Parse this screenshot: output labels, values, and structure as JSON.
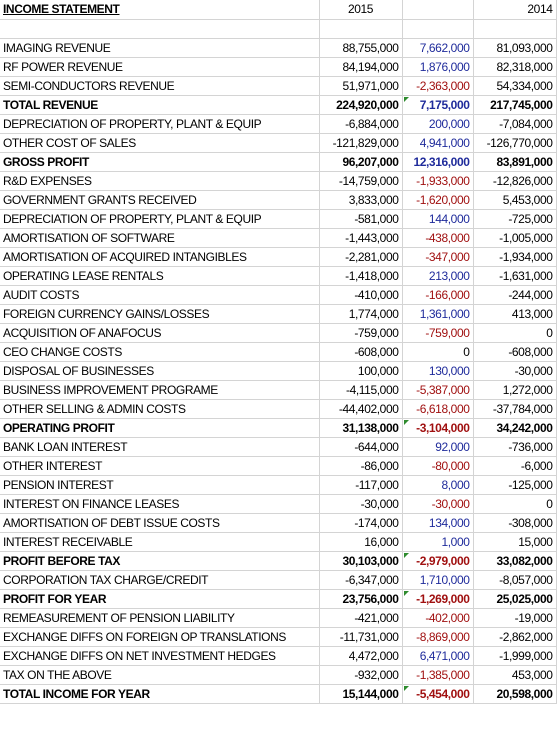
{
  "header": {
    "title": "INCOME STATEMENT",
    "col_2015": "2015",
    "col_diff": "",
    "col_2014": "2014"
  },
  "colors": {
    "positive_diff": "#1f2b9b",
    "negative_diff": "#a01010",
    "comment_flag": "#2e8b2e"
  },
  "rows": [
    {
      "label": "",
      "v2015": "",
      "diff": "",
      "v2014": "",
      "bold": false,
      "sign": "",
      "flag": false
    },
    {
      "label": "IMAGING REVENUE",
      "v2015": "88,755,000",
      "diff": "7,662,000",
      "v2014": "81,093,000",
      "bold": false,
      "sign": "pos",
      "flag": false
    },
    {
      "label": "RF POWER REVENUE",
      "v2015": "84,194,000",
      "diff": "1,876,000",
      "v2014": "82,318,000",
      "bold": false,
      "sign": "pos",
      "flag": false
    },
    {
      "label": "SEMI-CONDUCTORS REVENUE",
      "v2015": "51,971,000",
      "diff": "-2,363,000",
      "v2014": "54,334,000",
      "bold": false,
      "sign": "neg",
      "flag": false
    },
    {
      "label": "TOTAL REVENUE",
      "v2015": "224,920,000",
      "diff": "7,175,000",
      "v2014": "217,745,000",
      "bold": true,
      "sign": "pos",
      "flag": true
    },
    {
      "label": "DEPRECIATION OF PROPERTY, PLANT & EQUIP",
      "v2015": "-6,884,000",
      "diff": "200,000",
      "v2014": "-7,084,000",
      "bold": false,
      "sign": "pos",
      "flag": false
    },
    {
      "label": "OTHER COST OF SALES",
      "v2015": "-121,829,000",
      "diff": "4,941,000",
      "v2014": "-126,770,000",
      "bold": false,
      "sign": "pos",
      "flag": false
    },
    {
      "label": "GROSS PROFIT",
      "v2015": "96,207,000",
      "diff": "12,316,000",
      "v2014": "83,891,000",
      "bold": true,
      "sign": "pos",
      "flag": false
    },
    {
      "label": "R&D EXPENSES",
      "v2015": "-14,759,000",
      "diff": "-1,933,000",
      "v2014": "-12,826,000",
      "bold": false,
      "sign": "neg",
      "flag": false
    },
    {
      "label": "GOVERNMENT GRANTS RECEIVED",
      "v2015": "3,833,000",
      "diff": "-1,620,000",
      "v2014": "5,453,000",
      "bold": false,
      "sign": "neg",
      "flag": false
    },
    {
      "label": "DEPRECIATION OF PROPERTY, PLANT & EQUIP",
      "v2015": "-581,000",
      "diff": "144,000",
      "v2014": "-725,000",
      "bold": false,
      "sign": "pos",
      "flag": false
    },
    {
      "label": "AMORTISATION OF SOFTWARE",
      "v2015": "-1,443,000",
      "diff": "-438,000",
      "v2014": "-1,005,000",
      "bold": false,
      "sign": "neg",
      "flag": false
    },
    {
      "label": "AMORTISATION OF ACQUIRED INTANGIBLES",
      "v2015": "-2,281,000",
      "diff": "-347,000",
      "v2014": "-1,934,000",
      "bold": false,
      "sign": "neg",
      "flag": false
    },
    {
      "label": "OPERATING LEASE RENTALS",
      "v2015": "-1,418,000",
      "diff": "213,000",
      "v2014": "-1,631,000",
      "bold": false,
      "sign": "pos",
      "flag": false
    },
    {
      "label": "AUDIT COSTS",
      "v2015": "-410,000",
      "diff": "-166,000",
      "v2014": "-244,000",
      "bold": false,
      "sign": "neg",
      "flag": false
    },
    {
      "label": "FOREIGN CURRENCY GAINS/LOSSES",
      "v2015": "1,774,000",
      "diff": "1,361,000",
      "v2014": "413,000",
      "bold": false,
      "sign": "pos",
      "flag": false
    },
    {
      "label": "ACQUISITION OF ANAFOCUS",
      "v2015": "-759,000",
      "diff": "-759,000",
      "v2014": "0",
      "bold": false,
      "sign": "neg",
      "flag": false
    },
    {
      "label": "CEO CHANGE COSTS",
      "v2015": "-608,000",
      "diff": "0",
      "v2014": "-608,000",
      "bold": false,
      "sign": "zero",
      "flag": false
    },
    {
      "label": "DISPOSAL OF BUSINESSES",
      "v2015": "100,000",
      "diff": "130,000",
      "v2014": "-30,000",
      "bold": false,
      "sign": "pos",
      "flag": false
    },
    {
      "label": "BUSINESS IMPROVEMENT PROGRAME",
      "v2015": "-4,115,000",
      "diff": "-5,387,000",
      "v2014": "1,272,000",
      "bold": false,
      "sign": "neg",
      "flag": false
    },
    {
      "label": "OTHER SELLING & ADMIN COSTS",
      "v2015": "-44,402,000",
      "diff": "-6,618,000",
      "v2014": "-37,784,000",
      "bold": false,
      "sign": "neg",
      "flag": false
    },
    {
      "label": "OPERATING PROFIT",
      "v2015": "31,138,000",
      "diff": "-3,104,000",
      "v2014": "34,242,000",
      "bold": true,
      "sign": "neg",
      "flag": true
    },
    {
      "label": "BANK LOAN INTEREST",
      "v2015": "-644,000",
      "diff": "92,000",
      "v2014": "-736,000",
      "bold": false,
      "sign": "pos",
      "flag": false
    },
    {
      "label": "OTHER INTEREST",
      "v2015": "-86,000",
      "diff": "-80,000",
      "v2014": "-6,000",
      "bold": false,
      "sign": "neg",
      "flag": false
    },
    {
      "label": "PENSION INTEREST",
      "v2015": "-117,000",
      "diff": "8,000",
      "v2014": "-125,000",
      "bold": false,
      "sign": "pos",
      "flag": false
    },
    {
      "label": "INTEREST ON FINANCE LEASES",
      "v2015": "-30,000",
      "diff": "-30,000",
      "v2014": "0",
      "bold": false,
      "sign": "neg",
      "flag": false
    },
    {
      "label": "AMORTISATION OF DEBT ISSUE COSTS",
      "v2015": "-174,000",
      "diff": "134,000",
      "v2014": "-308,000",
      "bold": false,
      "sign": "pos",
      "flag": false
    },
    {
      "label": "INTEREST RECEIVABLE",
      "v2015": "16,000",
      "diff": "1,000",
      "v2014": "15,000",
      "bold": false,
      "sign": "pos",
      "flag": false
    },
    {
      "label": "PROFIT BEFORE TAX",
      "v2015": "30,103,000",
      "diff": "-2,979,000",
      "v2014": "33,082,000",
      "bold": true,
      "sign": "neg",
      "flag": true
    },
    {
      "label": "CORPORATION TAX CHARGE/CREDIT",
      "v2015": "-6,347,000",
      "diff": "1,710,000",
      "v2014": "-8,057,000",
      "bold": false,
      "sign": "pos",
      "flag": false
    },
    {
      "label": "PROFIT FOR YEAR",
      "v2015": "23,756,000",
      "diff": "-1,269,000",
      "v2014": "25,025,000",
      "bold": true,
      "sign": "neg",
      "flag": true
    },
    {
      "label": "REMEASUREMENT OF PENSION LIABILITY",
      "v2015": "-421,000",
      "diff": "-402,000",
      "v2014": "-19,000",
      "bold": false,
      "sign": "neg",
      "flag": false
    },
    {
      "label": "EXCHANGE DIFFS ON FOREIGN OP TRANSLATIONS",
      "v2015": "-11,731,000",
      "diff": "-8,869,000",
      "v2014": "-2,862,000",
      "bold": false,
      "sign": "neg",
      "flag": false
    },
    {
      "label": "EXCHANGE DIFFS ON NET INVESTMENT HEDGES",
      "v2015": "4,472,000",
      "diff": "6,471,000",
      "v2014": "-1,999,000",
      "bold": false,
      "sign": "pos",
      "flag": false
    },
    {
      "label": "TAX ON THE ABOVE",
      "v2015": "-932,000",
      "diff": "-1,385,000",
      "v2014": "453,000",
      "bold": false,
      "sign": "neg",
      "flag": false
    },
    {
      "label": "TOTAL INCOME FOR YEAR",
      "v2015": "15,144,000",
      "diff": "-5,454,000",
      "v2014": "20,598,000",
      "bold": true,
      "sign": "neg",
      "flag": true
    }
  ]
}
